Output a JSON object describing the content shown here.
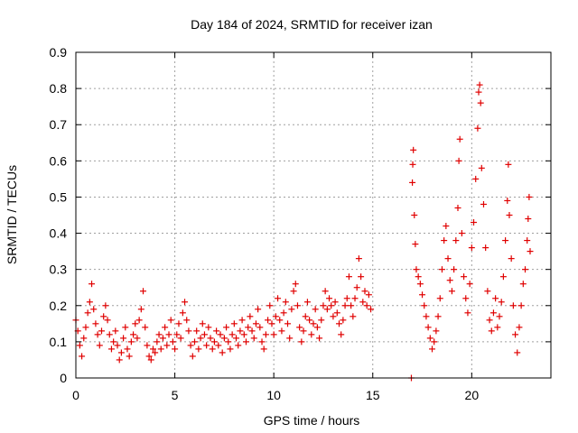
{
  "chart_data": {
    "type": "scatter",
    "title": "Day 184 of 2024, SRMTID for receiver izan",
    "xlabel": "GPS time / hours",
    "ylabel": "SRMTID / TECUs",
    "xlim": [
      0,
      24
    ],
    "ylim": [
      0,
      0.9
    ],
    "xticks": [
      0,
      5,
      10,
      15,
      20
    ],
    "yticks": [
      0,
      0.1,
      0.2,
      0.3,
      0.4,
      0.5,
      0.6,
      0.7,
      0.8,
      0.9
    ],
    "xtick_labels": [
      "0",
      "5",
      "10",
      "15",
      "20"
    ],
    "ytick_labels": [
      "0",
      "0.1",
      "0.2",
      "0.3",
      "0.4",
      "0.5",
      "0.6",
      "0.7",
      "0.8",
      "0.9"
    ],
    "grid": true,
    "marker": "+",
    "color": "#e00000",
    "series": [
      {
        "name": "SRMTID",
        "points": [
          [
            0.0,
            0.16
          ],
          [
            0.1,
            0.13
          ],
          [
            0.2,
            0.09
          ],
          [
            0.3,
            0.06
          ],
          [
            0.4,
            0.11
          ],
          [
            0.5,
            0.14
          ],
          [
            0.6,
            0.18
          ],
          [
            0.7,
            0.21
          ],
          [
            0.8,
            0.26
          ],
          [
            0.9,
            0.19
          ],
          [
            1.0,
            0.15
          ],
          [
            1.1,
            0.12
          ],
          [
            1.2,
            0.09
          ],
          [
            1.3,
            0.13
          ],
          [
            1.4,
            0.17
          ],
          [
            1.5,
            0.2
          ],
          [
            1.6,
            0.16
          ],
          [
            1.7,
            0.12
          ],
          [
            1.8,
            0.08
          ],
          [
            1.9,
            0.1
          ],
          [
            2.0,
            0.13
          ],
          [
            2.1,
            0.09
          ],
          [
            2.2,
            0.05
          ],
          [
            2.3,
            0.07
          ],
          [
            2.4,
            0.11
          ],
          [
            2.5,
            0.14
          ],
          [
            2.6,
            0.08
          ],
          [
            2.7,
            0.06
          ],
          [
            2.8,
            0.1
          ],
          [
            2.9,
            0.12
          ],
          [
            3.0,
            0.15
          ],
          [
            3.1,
            0.11
          ],
          [
            3.2,
            0.16
          ],
          [
            3.3,
            0.19
          ],
          [
            3.4,
            0.24
          ],
          [
            3.5,
            0.14
          ],
          [
            3.6,
            0.09
          ],
          [
            3.7,
            0.06
          ],
          [
            3.8,
            0.05
          ],
          [
            3.9,
            0.08
          ],
          [
            4.0,
            0.07
          ],
          [
            4.1,
            0.1
          ],
          [
            4.2,
            0.12
          ],
          [
            4.3,
            0.08
          ],
          [
            4.4,
            0.11
          ],
          [
            4.5,
            0.14
          ],
          [
            4.6,
            0.09
          ],
          [
            4.7,
            0.12
          ],
          [
            4.8,
            0.16
          ],
          [
            4.9,
            0.1
          ],
          [
            5.0,
            0.08
          ],
          [
            5.1,
            0.12
          ],
          [
            5.2,
            0.15
          ],
          [
            5.3,
            0.11
          ],
          [
            5.4,
            0.18
          ],
          [
            5.5,
            0.21
          ],
          [
            5.6,
            0.16
          ],
          [
            5.7,
            0.13
          ],
          [
            5.8,
            0.09
          ],
          [
            5.9,
            0.06
          ],
          [
            6.0,
            0.1
          ],
          [
            6.1,
            0.13
          ],
          [
            6.2,
            0.08
          ],
          [
            6.3,
            0.11
          ],
          [
            6.4,
            0.15
          ],
          [
            6.5,
            0.12
          ],
          [
            6.6,
            0.09
          ],
          [
            6.7,
            0.14
          ],
          [
            6.8,
            0.11
          ],
          [
            6.9,
            0.08
          ],
          [
            7.0,
            0.1
          ],
          [
            7.1,
            0.13
          ],
          [
            7.2,
            0.09
          ],
          [
            7.3,
            0.12
          ],
          [
            7.4,
            0.07
          ],
          [
            7.5,
            0.11
          ],
          [
            7.6,
            0.14
          ],
          [
            7.7,
            0.1
          ],
          [
            7.8,
            0.08
          ],
          [
            7.9,
            0.12
          ],
          [
            8.0,
            0.15
          ],
          [
            8.1,
            0.11
          ],
          [
            8.2,
            0.09
          ],
          [
            8.3,
            0.13
          ],
          [
            8.4,
            0.16
          ],
          [
            8.5,
            0.12
          ],
          [
            8.6,
            0.1
          ],
          [
            8.7,
            0.14
          ],
          [
            8.8,
            0.17
          ],
          [
            8.9,
            0.13
          ],
          [
            9.0,
            0.11
          ],
          [
            9.1,
            0.15
          ],
          [
            9.2,
            0.19
          ],
          [
            9.3,
            0.14
          ],
          [
            9.4,
            0.1
          ],
          [
            9.5,
            0.08
          ],
          [
            9.6,
            0.12
          ],
          [
            9.7,
            0.16
          ],
          [
            9.8,
            0.2
          ],
          [
            9.9,
            0.15
          ],
          [
            10.0,
            0.12
          ],
          [
            10.1,
            0.17
          ],
          [
            10.2,
            0.22
          ],
          [
            10.3,
            0.16
          ],
          [
            10.4,
            0.13
          ],
          [
            10.5,
            0.18
          ],
          [
            10.6,
            0.21
          ],
          [
            10.7,
            0.15
          ],
          [
            10.8,
            0.11
          ],
          [
            10.9,
            0.19
          ],
          [
            11.0,
            0.24
          ],
          [
            11.1,
            0.26
          ],
          [
            11.2,
            0.2
          ],
          [
            11.3,
            0.14
          ],
          [
            11.4,
            0.1
          ],
          [
            11.5,
            0.13
          ],
          [
            11.6,
            0.17
          ],
          [
            11.7,
            0.21
          ],
          [
            11.8,
            0.16
          ],
          [
            11.9,
            0.12
          ],
          [
            12.0,
            0.15
          ],
          [
            12.1,
            0.19
          ],
          [
            12.2,
            0.14
          ],
          [
            12.3,
            0.11
          ],
          [
            12.4,
            0.16
          ],
          [
            12.5,
            0.2
          ],
          [
            12.6,
            0.24
          ],
          [
            12.7,
            0.19
          ],
          [
            12.8,
            0.22
          ],
          [
            12.9,
            0.2
          ],
          [
            13.0,
            0.17
          ],
          [
            13.1,
            0.21
          ],
          [
            13.2,
            0.18
          ],
          [
            13.3,
            0.15
          ],
          [
            13.4,
            0.12
          ],
          [
            13.5,
            0.16
          ],
          [
            13.6,
            0.2
          ],
          [
            13.7,
            0.22
          ],
          [
            13.8,
            0.28
          ],
          [
            13.9,
            0.2
          ],
          [
            14.0,
            0.17
          ],
          [
            14.1,
            0.22
          ],
          [
            14.2,
            0.25
          ],
          [
            14.3,
            0.33
          ],
          [
            14.4,
            0.28
          ],
          [
            14.5,
            0.21
          ],
          [
            14.6,
            0.24
          ],
          [
            14.7,
            0.2
          ],
          [
            14.8,
            0.23
          ],
          [
            14.9,
            0.19
          ],
          [
            16.95,
            0.0
          ],
          [
            17.0,
            0.54
          ],
          [
            17.02,
            0.59
          ],
          [
            17.05,
            0.63
          ],
          [
            17.1,
            0.45
          ],
          [
            17.15,
            0.37
          ],
          [
            17.2,
            0.3
          ],
          [
            17.3,
            0.28
          ],
          [
            17.4,
            0.26
          ],
          [
            17.5,
            0.23
          ],
          [
            17.6,
            0.2
          ],
          [
            17.7,
            0.17
          ],
          [
            17.8,
            0.14
          ],
          [
            17.9,
            0.11
          ],
          [
            18.0,
            0.08
          ],
          [
            18.1,
            0.1
          ],
          [
            18.2,
            0.13
          ],
          [
            18.3,
            0.17
          ],
          [
            18.4,
            0.22
          ],
          [
            18.5,
            0.3
          ],
          [
            18.6,
            0.38
          ],
          [
            18.7,
            0.42
          ],
          [
            18.8,
            0.33
          ],
          [
            18.9,
            0.27
          ],
          [
            19.0,
            0.24
          ],
          [
            19.1,
            0.3
          ],
          [
            19.2,
            0.38
          ],
          [
            19.3,
            0.47
          ],
          [
            19.35,
            0.6
          ],
          [
            19.4,
            0.66
          ],
          [
            19.5,
            0.4
          ],
          [
            19.6,
            0.28
          ],
          [
            19.7,
            0.22
          ],
          [
            19.8,
            0.18
          ],
          [
            19.9,
            0.26
          ],
          [
            20.0,
            0.36
          ],
          [
            20.1,
            0.43
          ],
          [
            20.2,
            0.55
          ],
          [
            20.3,
            0.69
          ],
          [
            20.35,
            0.79
          ],
          [
            20.4,
            0.81
          ],
          [
            20.45,
            0.76
          ],
          [
            20.5,
            0.58
          ],
          [
            20.6,
            0.48
          ],
          [
            20.7,
            0.36
          ],
          [
            20.8,
            0.24
          ],
          [
            20.9,
            0.16
          ],
          [
            21.0,
            0.13
          ],
          [
            21.1,
            0.18
          ],
          [
            21.2,
            0.22
          ],
          [
            21.3,
            0.14
          ],
          [
            21.4,
            0.17
          ],
          [
            21.5,
            0.21
          ],
          [
            21.6,
            0.28
          ],
          [
            21.7,
            0.38
          ],
          [
            21.8,
            0.49
          ],
          [
            21.85,
            0.59
          ],
          [
            21.9,
            0.45
          ],
          [
            22.0,
            0.33
          ],
          [
            22.1,
            0.2
          ],
          [
            22.2,
            0.12
          ],
          [
            22.3,
            0.07
          ],
          [
            22.4,
            0.14
          ],
          [
            22.5,
            0.2
          ],
          [
            22.6,
            0.26
          ],
          [
            22.7,
            0.3
          ],
          [
            22.8,
            0.38
          ],
          [
            22.85,
            0.44
          ],
          [
            22.9,
            0.5
          ],
          [
            22.95,
            0.35
          ]
        ]
      }
    ]
  }
}
